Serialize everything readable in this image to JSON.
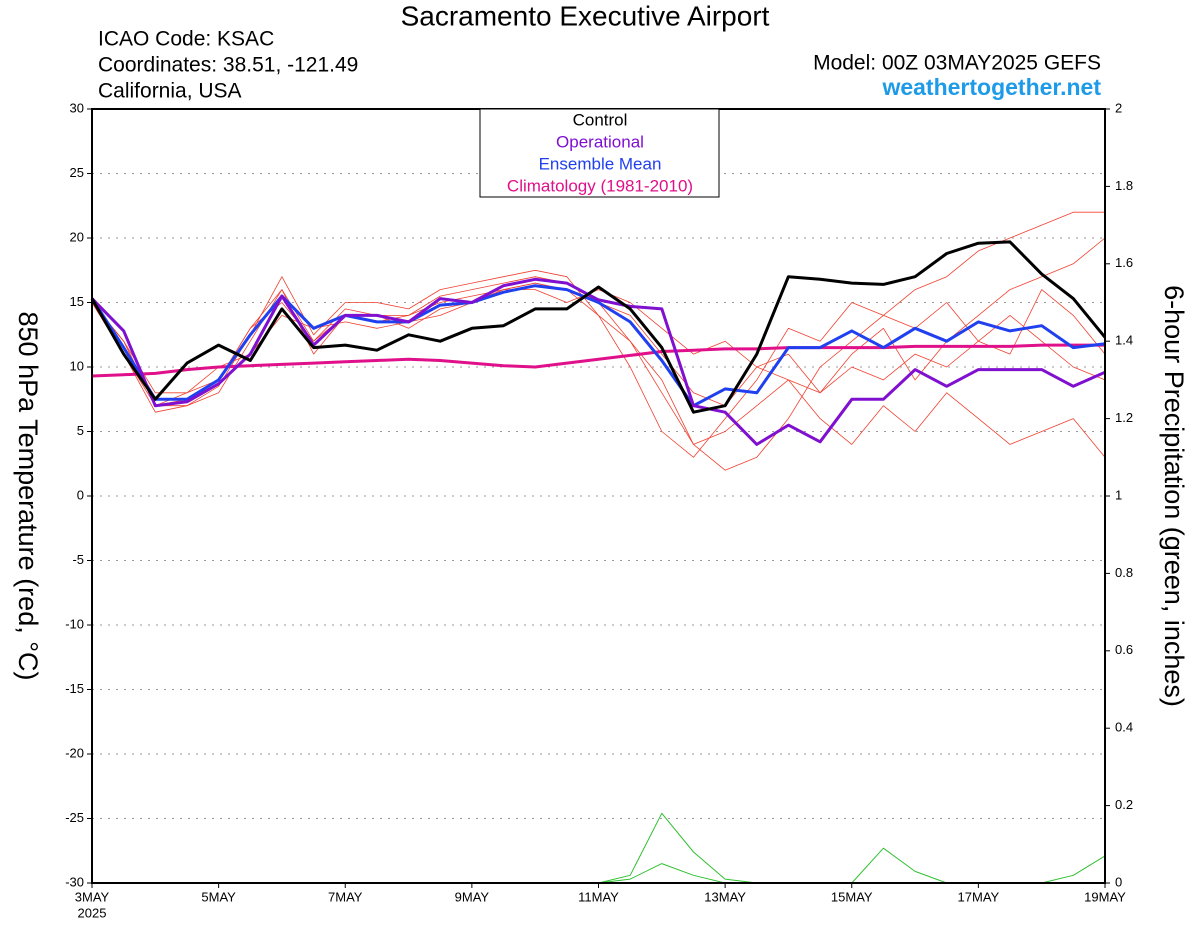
{
  "chart_data": {
    "type": "line",
    "title": "Sacramento Executive Airport",
    "annotations": [
      "ICAO Code: KSAC",
      "Coordinates: 38.51, -121.49",
      "California, USA"
    ],
    "model": "Model: 00Z 03MAY2025 GEFS",
    "source": "weathertogether.net",
    "ylabel": "850 hPa Temperature (red, °C)",
    "y2label": "6-hour Precipitation (green, inches)",
    "x_sublabel": "2025",
    "x": [
      "2025-05-03T00",
      "2025-05-03T12",
      "2025-05-04T00",
      "2025-05-04T12",
      "2025-05-05T00",
      "2025-05-05T12",
      "2025-05-06T00",
      "2025-05-06T12",
      "2025-05-07T00",
      "2025-05-07T12",
      "2025-05-08T00",
      "2025-05-08T12",
      "2025-05-09T00",
      "2025-05-09T12",
      "2025-05-10T00",
      "2025-05-10T12",
      "2025-05-11T00",
      "2025-05-11T12",
      "2025-05-12T00",
      "2025-05-12T12",
      "2025-05-13T00",
      "2025-05-13T12",
      "2025-05-14T00",
      "2025-05-14T12",
      "2025-05-15T00",
      "2025-05-15T12",
      "2025-05-16T00",
      "2025-05-16T12",
      "2025-05-17T00",
      "2025-05-17T12",
      "2025-05-18T00",
      "2025-05-18T12",
      "2025-05-19T00"
    ],
    "xlim": [
      "2025-05-03T00",
      "2025-05-19T00"
    ],
    "xticks": [
      {
        "value": "2025-05-03T00",
        "label": "3MAY"
      },
      {
        "value": "2025-05-05T00",
        "label": "5MAY"
      },
      {
        "value": "2025-05-07T00",
        "label": "7MAY"
      },
      {
        "value": "2025-05-09T00",
        "label": "9MAY"
      },
      {
        "value": "2025-05-11T00",
        "label": "11MAY"
      },
      {
        "value": "2025-05-13T00",
        "label": "13MAY"
      },
      {
        "value": "2025-05-15T00",
        "label": "15MAY"
      },
      {
        "value": "2025-05-17T00",
        "label": "17MAY"
      },
      {
        "value": "2025-05-19T00",
        "label": "19MAY"
      }
    ],
    "ylim": [
      -30,
      30
    ],
    "yticks": [
      -30,
      -25,
      -20,
      -15,
      -10,
      -5,
      0,
      5,
      10,
      15,
      20,
      25,
      30
    ],
    "y2lim": [
      0,
      2
    ],
    "y2ticks": [
      0,
      0.2,
      0.4,
      0.6,
      0.8,
      1,
      1.2,
      1.4,
      1.6,
      1.8,
      2
    ],
    "grid": true,
    "ensemble": [
      {
        "color": "#f04030",
        "values": [
          15,
          12,
          7,
          8,
          9,
          13,
          16,
          12,
          14.5,
          14,
          14,
          15.5,
          16,
          16.5,
          17,
          16.5,
          15,
          12,
          8,
          4,
          5,
          7,
          9,
          8,
          10,
          9,
          11,
          10,
          12,
          14,
          12,
          10,
          9
        ]
      },
      {
        "color": "#f04030",
        "values": [
          15,
          11,
          6.5,
          7,
          8.5,
          12.5,
          17,
          12.5,
          15,
          15,
          14.5,
          16,
          16.5,
          17,
          17.5,
          17,
          14,
          10,
          5,
          3,
          6,
          9,
          13,
          12,
          15,
          14,
          16,
          17,
          19,
          20,
          21,
          22,
          22
        ]
      },
      {
        "color": "#f04030",
        "values": [
          15,
          12,
          8,
          8,
          10,
          11,
          14,
          13,
          13.5,
          13,
          13.5,
          14,
          15,
          16,
          16,
          15,
          16,
          15,
          13,
          11,
          12,
          10,
          9,
          6,
          4,
          7,
          5,
          8,
          6,
          4,
          5,
          6,
          3
        ]
      },
      {
        "color": "#f04030",
        "values": [
          15,
          11,
          7,
          7,
          8,
          12,
          16,
          11,
          14,
          13.5,
          14,
          15,
          15.5,
          16,
          16.5,
          16,
          14,
          12,
          9,
          4,
          2,
          3,
          6,
          10,
          12,
          14,
          13,
          15,
          12,
          11,
          16,
          14,
          11
        ]
      },
      {
        "color": "#f04030",
        "values": [
          15,
          12,
          7,
          7.5,
          9,
          13,
          15,
          12,
          14,
          14,
          13,
          14.5,
          15,
          16,
          16.5,
          16,
          15,
          14,
          11,
          8,
          7,
          10,
          11,
          8,
          11,
          13,
          9,
          12,
          14,
          16,
          17,
          18,
          20
        ]
      }
    ],
    "precip": [
      {
        "color": "#30c030",
        "axis": "y2",
        "values": [
          0,
          0,
          0,
          0,
          0,
          0,
          0,
          0,
          0,
          0,
          0,
          0,
          0,
          0,
          0,
          0,
          0,
          0.02,
          0.18,
          0.08,
          0.01,
          0,
          0,
          0,
          0,
          0,
          0,
          0,
          0,
          0,
          0,
          0,
          0
        ]
      },
      {
        "color": "#30c030",
        "axis": "y2",
        "values": [
          0,
          0,
          0,
          0,
          0,
          0,
          0,
          0,
          0,
          0,
          0,
          0,
          0,
          0,
          0,
          0,
          0,
          0.01,
          0.05,
          0.02,
          0,
          0,
          0,
          0,
          0,
          0.09,
          0.03,
          0,
          0,
          0,
          0,
          0.02,
          0.07
        ]
      }
    ],
    "series": [
      {
        "name": "Control",
        "color": "#000000",
        "values": [
          15.3,
          11,
          7.5,
          10.3,
          11.7,
          10.5,
          14.5,
          11.5,
          11.7,
          11.3,
          12.5,
          12,
          13,
          13.2,
          14.5,
          14.5,
          16.2,
          14.5,
          11.5,
          6.5,
          7,
          11,
          17,
          16.8,
          16.5,
          16.4,
          17,
          18.8,
          19.6,
          19.7,
          17.2,
          15.3,
          12.3
        ]
      },
      {
        "name": "Operational",
        "color": "#8010d0",
        "values": [
          15.3,
          12.8,
          7,
          7.3,
          8.7,
          11,
          15.5,
          11.7,
          14,
          14,
          13.5,
          15.3,
          15,
          16.3,
          16.8,
          16.5,
          15.2,
          14.7,
          14.5,
          7,
          6.5,
          4,
          5.5,
          4.2,
          7.5,
          7.5,
          9.8,
          8.5,
          9.8,
          9.8,
          9.8,
          8.5,
          9.6
        ]
      },
      {
        "name": "Ensemble Mean",
        "color": "#2040f0",
        "values": [
          15.3,
          11.5,
          7.5,
          7.5,
          9,
          12.5,
          15.5,
          13,
          14,
          13.5,
          13.5,
          14.8,
          15,
          15.8,
          16.3,
          16,
          15,
          13.5,
          10.5,
          7,
          8.3,
          8,
          11.5,
          11.5,
          12.8,
          11.5,
          13,
          12,
          13.5,
          12.8,
          13.2,
          11.5,
          11.8
        ]
      },
      {
        "name": "Climatology (1981-2010)",
        "color": "#e0108a",
        "values": [
          9.3,
          9.4,
          9.5,
          9.8,
          10,
          10.1,
          10.2,
          10.3,
          10.4,
          10.5,
          10.6,
          10.5,
          10.3,
          10.1,
          10,
          10.3,
          10.6,
          10.9,
          11.2,
          11.3,
          11.4,
          11.4,
          11.5,
          11.5,
          11.5,
          11.5,
          11.6,
          11.6,
          11.6,
          11.6,
          11.7,
          11.7,
          11.7
        ]
      }
    ]
  }
}
